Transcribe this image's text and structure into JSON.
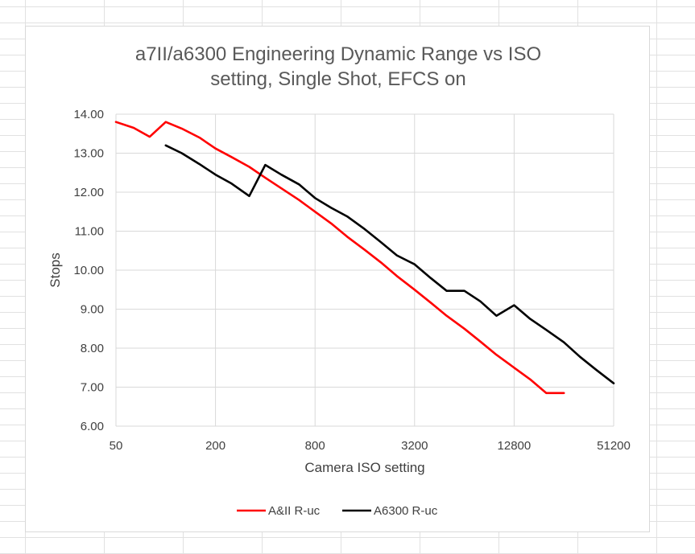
{
  "chart_data": {
    "type": "line",
    "title": [
      "a7II/a6300 Engineering Dynamic Range vs ISO",
      "setting, Single Shot, EFCS on"
    ],
    "xlabel": "Camera ISO setting",
    "ylabel": "Stops",
    "x_scale": "log2",
    "xlim": [
      50,
      51200
    ],
    "ylim": [
      6.0,
      14.0
    ],
    "x_ticks": [
      50,
      200,
      800,
      3200,
      12800,
      51200
    ],
    "x_tick_labels": [
      "50",
      "200",
      "800",
      "3200",
      "12800",
      "51200"
    ],
    "y_ticks": [
      6,
      7,
      8,
      9,
      10,
      11,
      12,
      13,
      14
    ],
    "y_tick_labels": [
      "6.00",
      "7.00",
      "8.00",
      "9.00",
      "10.00",
      "11.00",
      "12.00",
      "13.00",
      "14.00"
    ],
    "grid": "vertical and horizontal major gridlines",
    "legend_position": "bottom",
    "series": [
      {
        "name": "A&II R-uc",
        "color": "#ff0000",
        "x": [
          50,
          64,
          80,
          100,
          125,
          160,
          200,
          250,
          320,
          400,
          500,
          640,
          800,
          1000,
          1250,
          1600,
          2000,
          2500,
          3200,
          4000,
          5000,
          6400,
          8000,
          10000,
          12800,
          16000,
          20000,
          25600
        ],
        "y": [
          13.8,
          13.65,
          13.42,
          13.8,
          13.63,
          13.4,
          13.12,
          12.9,
          12.65,
          12.37,
          12.1,
          11.8,
          11.5,
          11.2,
          10.86,
          10.52,
          10.2,
          9.85,
          9.5,
          9.17,
          8.83,
          8.5,
          8.17,
          7.83,
          7.5,
          7.2,
          6.85,
          6.85
        ]
      },
      {
        "name": "A6300 R-uc",
        "color": "#000000",
        "x": [
          100,
          125,
          160,
          200,
          250,
          320,
          400,
          500,
          640,
          800,
          1000,
          1250,
          1600,
          2000,
          2500,
          3200,
          4000,
          5000,
          6400,
          8000,
          10000,
          12800,
          16000,
          20000,
          25600,
          32000,
          40000,
          51200
        ],
        "y": [
          13.2,
          13.0,
          12.72,
          12.45,
          12.22,
          11.9,
          12.7,
          12.45,
          12.2,
          11.85,
          11.6,
          11.38,
          11.05,
          10.72,
          10.38,
          10.15,
          9.8,
          9.47,
          9.47,
          9.2,
          8.83,
          9.1,
          8.75,
          8.47,
          8.15,
          7.78,
          7.45,
          7.1
        ]
      }
    ]
  }
}
